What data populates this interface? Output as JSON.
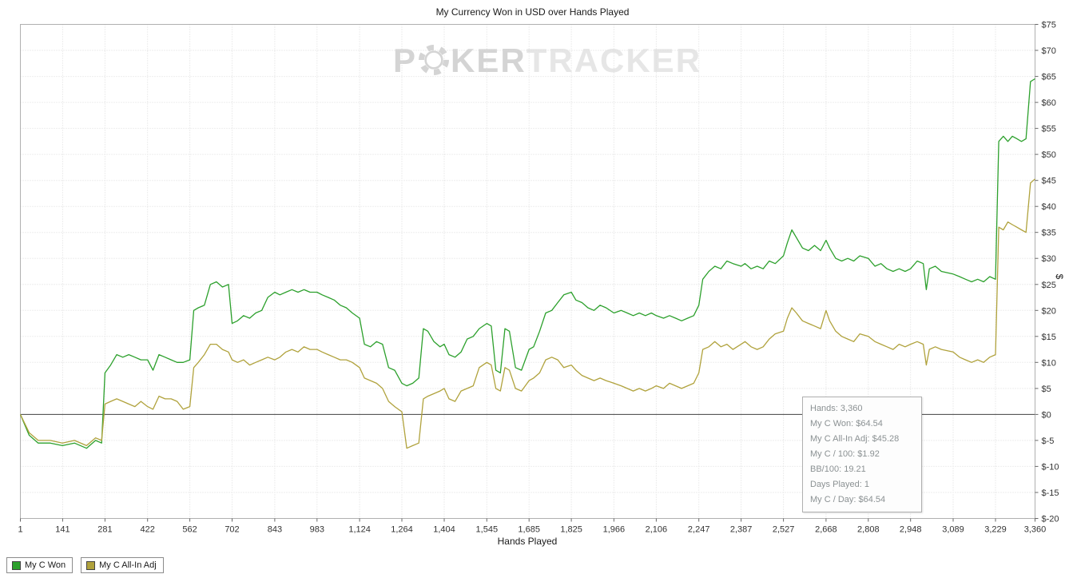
{
  "title": "My Currency Won in USD over Hands Played",
  "watermark": {
    "part1": "P",
    "part2": "KER",
    "part3": "TRACKER"
  },
  "axes": {
    "x_label": "Hands Played",
    "y_label": "$"
  },
  "tooltip": {
    "lines": [
      "Hands: 3,360",
      "My C Won: $64.54",
      "My C All-In Adj: $45.28",
      "My C / 100: $1.92",
      "BB/100: 19.21",
      "Days Played: 1",
      "My C / Day: $64.54"
    ]
  },
  "chart_data": {
    "type": "line",
    "title": "My Currency Won in USD over Hands Played",
    "xlabel": "Hands Played",
    "ylabel": "$",
    "xlim": [
      1,
      3360
    ],
    "ylim": [
      -20,
      75
    ],
    "grid": "dotted",
    "legend_position": "bottom-left",
    "x_tick_values": [
      1,
      141,
      281,
      422,
      562,
      702,
      843,
      983,
      1124,
      1264,
      1404,
      1545,
      1685,
      1825,
      1966,
      2106,
      2247,
      2387,
      2527,
      2668,
      2808,
      2948,
      3089,
      3229,
      3360
    ],
    "x_tick_labels": [
      "1",
      "141",
      "281",
      "422",
      "562",
      "702",
      "843",
      "983",
      "1,124",
      "1,264",
      "1,404",
      "1,545",
      "1,685",
      "1,825",
      "1,966",
      "2,106",
      "2,247",
      "2,387",
      "2,527",
      "2,668",
      "2,808",
      "2,948",
      "3,089",
      "3,229",
      "3,360"
    ],
    "y_tick_values": [
      75,
      70,
      65,
      60,
      55,
      50,
      45,
      40,
      35,
      30,
      25,
      20,
      15,
      10,
      5,
      0,
      -5,
      -10,
      -15,
      -20
    ],
    "y_tick_labels": [
      "$75",
      "$70",
      "$65",
      "$60",
      "$55",
      "$50",
      "$45",
      "$40",
      "$35",
      "$30",
      "$25",
      "$20",
      "$15",
      "$10",
      "$5",
      "$0",
      "$-5",
      "$-10",
      "$-15",
      "$-20"
    ],
    "x": [
      1,
      30,
      60,
      100,
      140,
      180,
      220,
      250,
      270,
      281,
      300,
      320,
      340,
      360,
      380,
      400,
      422,
      440,
      460,
      480,
      500,
      520,
      540,
      562,
      575,
      590,
      610,
      630,
      650,
      670,
      690,
      702,
      720,
      740,
      760,
      780,
      800,
      820,
      843,
      860,
      880,
      900,
      920,
      940,
      960,
      983,
      1000,
      1020,
      1040,
      1060,
      1080,
      1100,
      1124,
      1140,
      1160,
      1180,
      1200,
      1220,
      1240,
      1264,
      1280,
      1300,
      1320,
      1335,
      1350,
      1370,
      1390,
      1404,
      1420,
      1440,
      1460,
      1480,
      1500,
      1520,
      1545,
      1560,
      1575,
      1590,
      1605,
      1620,
      1640,
      1660,
      1685,
      1700,
      1720,
      1740,
      1760,
      1780,
      1800,
      1825,
      1840,
      1860,
      1880,
      1900,
      1920,
      1940,
      1966,
      1990,
      2010,
      2030,
      2050,
      2070,
      2090,
      2106,
      2130,
      2150,
      2170,
      2190,
      2210,
      2230,
      2247,
      2260,
      2280,
      2300,
      2320,
      2340,
      2360,
      2387,
      2400,
      2420,
      2440,
      2460,
      2480,
      2500,
      2527,
      2540,
      2555,
      2570,
      2590,
      2610,
      2630,
      2650,
      2668,
      2680,
      2700,
      2720,
      2740,
      2760,
      2780,
      2808,
      2830,
      2850,
      2870,
      2890,
      2910,
      2930,
      2948,
      2970,
      2990,
      3000,
      3010,
      3030,
      3050,
      3089,
      3110,
      3130,
      3150,
      3170,
      3190,
      3210,
      3229,
      3240,
      3255,
      3270,
      3285,
      3300,
      3315,
      3330,
      3345,
      3360
    ],
    "series": [
      {
        "name": "My C Won",
        "color": "#2ca02c",
        "final_value": 64.54,
        "values": [
          0,
          -4,
          -5.5,
          -5.5,
          -6,
          -5.5,
          -6.5,
          -5,
          -5.5,
          8,
          9.5,
          11.5,
          11,
          11.5,
          11,
          10.5,
          10.5,
          8.5,
          11.5,
          11,
          10.5,
          10,
          10,
          10.5,
          20,
          20.5,
          21,
          25,
          25.5,
          24.5,
          25,
          17.5,
          18,
          19,
          18.5,
          19.5,
          20,
          22.5,
          23.5,
          23,
          23.5,
          24,
          23.5,
          24,
          23.5,
          23.5,
          23,
          22.5,
          22,
          21,
          20.5,
          19.5,
          18.5,
          13.5,
          13,
          14,
          13.5,
          9,
          8.5,
          6,
          5.5,
          6,
          7,
          16.5,
          16,
          14,
          13,
          13.5,
          11.5,
          11,
          12,
          14.5,
          15,
          16.5,
          17.5,
          17,
          8.5,
          8,
          16.5,
          16,
          9,
          8.5,
          12.5,
          13,
          16,
          19.5,
          20,
          21.5,
          23,
          23.5,
          22,
          21.5,
          20.5,
          20,
          21,
          20.5,
          19.5,
          20,
          19.5,
          19,
          19.5,
          19,
          19.5,
          19,
          18.5,
          19,
          18.5,
          18,
          18.5,
          19,
          21,
          26,
          27.5,
          28.5,
          28,
          29.5,
          29,
          28.5,
          29,
          28,
          28.5,
          28,
          29.5,
          29,
          30.5,
          33,
          35.5,
          34,
          32,
          31.5,
          32.5,
          31.5,
          33.5,
          32,
          30,
          29.5,
          30,
          29.5,
          30.5,
          30,
          28.5,
          29,
          28,
          27.5,
          28,
          27.5,
          28,
          29.5,
          29,
          24,
          28,
          28.5,
          27.5,
          27,
          26.5,
          26,
          25.5,
          26,
          25.5,
          26.5,
          26,
          52.5,
          53.5,
          52.5,
          53.5,
          53,
          52.5,
          53,
          64,
          64.54
        ]
      },
      {
        "name": "My C All-In Adj",
        "color": "#b0a23c",
        "final_value": 45.28,
        "values": [
          0,
          -3.5,
          -5,
          -5,
          -5.5,
          -5,
          -6,
          -4.5,
          -5,
          2,
          2.5,
          3,
          2.5,
          2,
          1.5,
          2.5,
          1.5,
          1,
          3.5,
          3,
          3,
          2.5,
          1,
          1.5,
          9,
          10,
          11.5,
          13.5,
          13.5,
          12.5,
          12,
          10.5,
          10,
          10.5,
          9.5,
          10,
          10.5,
          11,
          10.5,
          11,
          12,
          12.5,
          12,
          13,
          12.5,
          12.5,
          12,
          11.5,
          11,
          10.5,
          10.5,
          10,
          9,
          7,
          6.5,
          6,
          5,
          2.5,
          1.5,
          0.5,
          -6.5,
          -6,
          -5.5,
          3,
          3.5,
          4,
          4.5,
          5,
          3,
          2.5,
          4.5,
          5,
          5.5,
          9,
          10,
          9.5,
          5,
          4.5,
          9,
          8.5,
          5,
          4.5,
          6.5,
          7,
          8,
          10.5,
          11,
          10.5,
          9,
          9.5,
          8.5,
          7.5,
          7,
          6.5,
          7,
          6.5,
          6,
          5.5,
          5,
          4.5,
          5,
          4.5,
          5,
          5.5,
          5,
          6,
          5.5,
          5,
          5.5,
          6,
          8,
          12.5,
          13,
          14,
          13,
          13.5,
          12.5,
          13.5,
          14,
          13,
          12.5,
          13,
          14.5,
          15.5,
          16,
          18.5,
          20.5,
          19.5,
          18,
          17.5,
          17,
          16.5,
          20,
          18,
          16,
          15,
          14.5,
          14,
          15.5,
          15,
          14,
          13.5,
          13,
          12.5,
          13.5,
          13,
          13.5,
          14,
          13.5,
          9.5,
          12.5,
          13,
          12.5,
          12,
          11,
          10.5,
          10,
          10.5,
          10,
          11,
          11.5,
          36,
          35.5,
          37,
          36.5,
          36,
          35.5,
          35,
          44.5,
          45.28
        ]
      }
    ]
  }
}
